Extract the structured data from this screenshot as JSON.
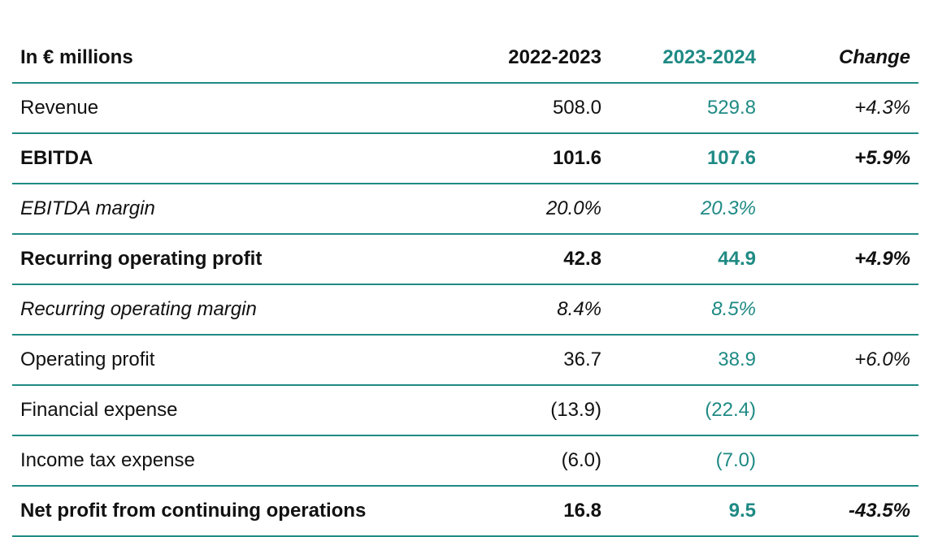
{
  "header": {
    "label": "In € millions",
    "col1": "2022-2023",
    "col2": "2023-2024",
    "col3": "Change"
  },
  "rows": [
    {
      "label": "Revenue",
      "y1": "508.0",
      "y2": "529.8",
      "change": "+4.3%",
      "style": "normal"
    },
    {
      "label": "EBITDA",
      "y1": "101.6",
      "y2": "107.6",
      "change": "+5.9%",
      "style": "bold"
    },
    {
      "label": "EBITDA margin",
      "y1": "20.0%",
      "y2": "20.3%",
      "change": "",
      "style": "italic"
    },
    {
      "label": "Recurring operating profit",
      "y1": "42.8",
      "y2": "44.9",
      "change": "+4.9%",
      "style": "bold"
    },
    {
      "label": "Recurring operating margin",
      "y1": "8.4%",
      "y2": "8.5%",
      "change": "",
      "style": "italic"
    },
    {
      "label": "Operating profit",
      "y1": "36.7",
      "y2": "38.9",
      "change": "+6.0%",
      "style": "normal"
    },
    {
      "label": "Financial expense",
      "y1": "(13.9)",
      "y2": "(22.4)",
      "change": "",
      "style": "normal"
    },
    {
      "label": "Income tax expense",
      "y1": "(6.0)",
      "y2": "(7.0)",
      "change": "",
      "style": "normal"
    },
    {
      "label": "Net profit from continuing operations",
      "y1": "16.8",
      "y2": "9.5",
      "change": "-43.5%",
      "style": "bold"
    }
  ],
  "colors": {
    "accent": "#1f8a84",
    "text": "#111111"
  }
}
